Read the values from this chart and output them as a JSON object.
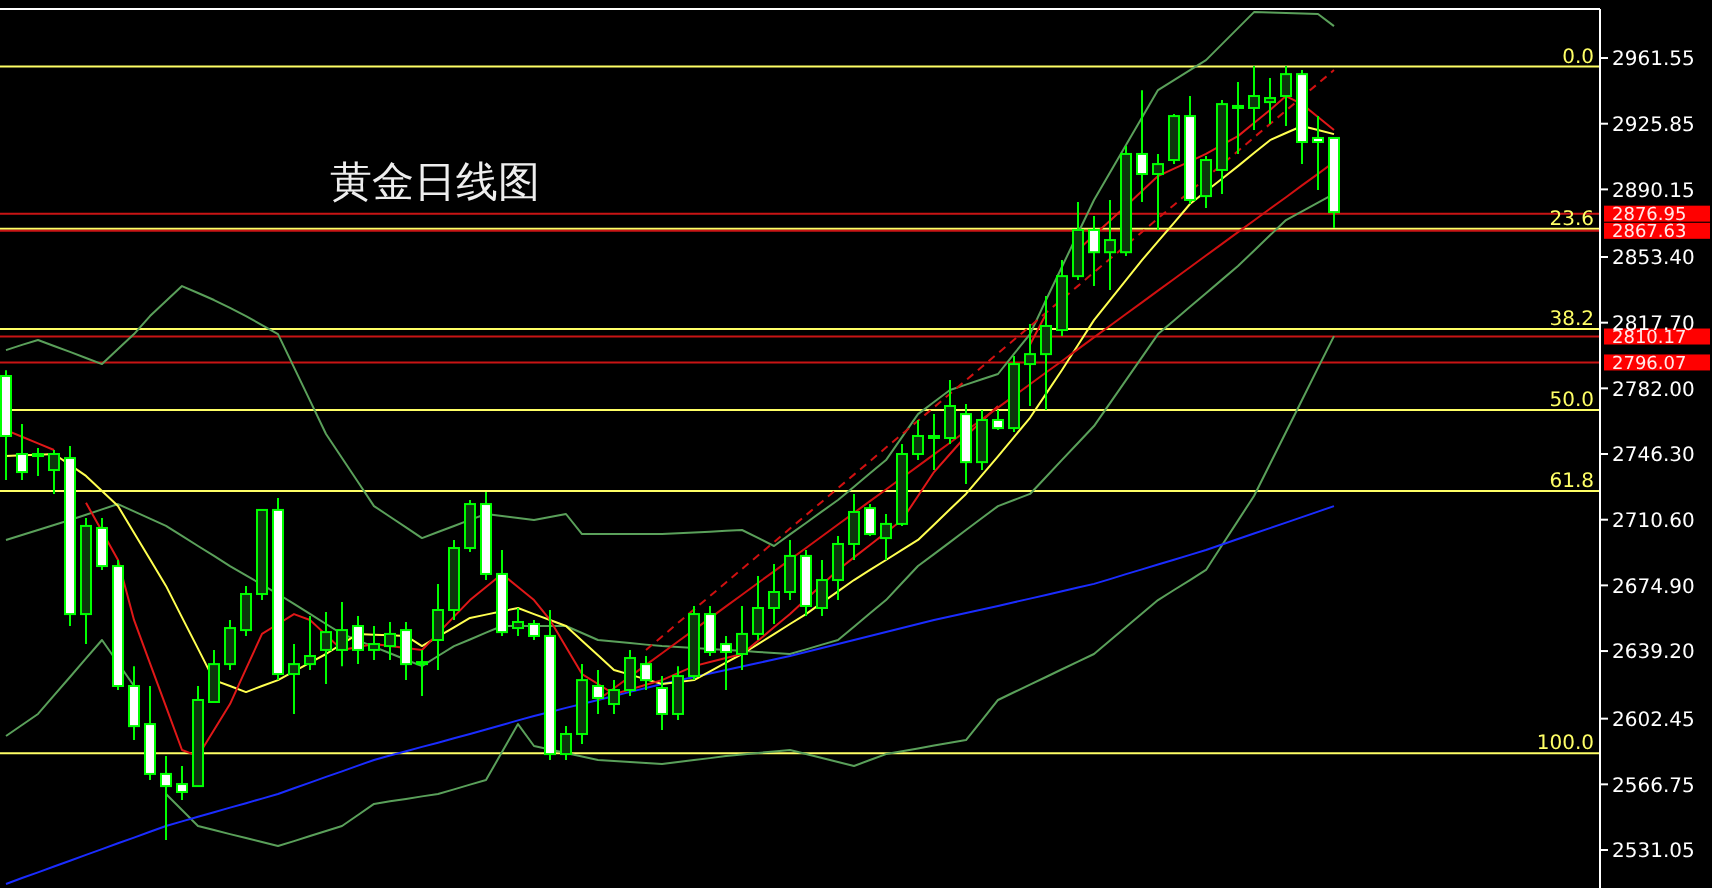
{
  "chart_data": {
    "type": "candlestick",
    "title": "黄金日线图",
    "tick_labels": "y",
    "ylim": [
      2510.4,
      2988.2
    ],
    "categories": [
      null,
      null,
      null,
      null,
      null,
      null,
      null,
      null,
      null,
      null,
      null,
      null,
      null,
      null,
      null,
      null,
      null,
      null,
      null,
      null,
      null,
      null,
      null,
      null,
      null,
      null,
      null,
      null,
      null,
      null,
      null,
      null,
      null,
      null,
      null,
      null,
      null,
      null,
      null,
      null,
      null,
      null,
      null,
      null,
      null,
      null,
      null,
      null,
      null,
      null,
      null,
      null,
      null,
      null,
      null,
      null,
      null,
      null,
      null,
      null,
      null,
      null,
      null,
      null,
      null,
      null,
      null,
      null,
      null,
      null,
      null,
      null,
      null,
      null,
      null,
      null,
      null,
      null,
      null,
      null,
      null,
      null,
      null,
      null
    ],
    "yticks": [
      {
        "value": 2961.55,
        "label": "2961.55"
      },
      {
        "value": 2925.85,
        "label": "2925.85"
      },
      {
        "value": 2890.15,
        "label": "2890.15"
      },
      {
        "value": 2853.4,
        "label": "2853.40"
      },
      {
        "value": 2817.7,
        "label": "2817.70"
      },
      {
        "value": 2782,
        "label": "2782.00"
      },
      {
        "value": 2746.3,
        "label": "2746.30"
      },
      {
        "value": 2710.6,
        "label": "2710.60"
      },
      {
        "value": 2674.9,
        "label": "2674.90"
      },
      {
        "value": 2639.2,
        "label": "2639.20"
      },
      {
        "value": 2602.45,
        "label": "2602.45"
      },
      {
        "value": 2566.75,
        "label": "2566.75"
      },
      {
        "value": 2531.05,
        "label": "2531.05"
      }
    ],
    "ref_lines": [
      {
        "axis": "y",
        "value": 2956.9,
        "color": "#ffff66"
      },
      {
        "axis": "y",
        "value": 2868.8,
        "color": "#ffff66"
      },
      {
        "axis": "y",
        "value": 2814.3,
        "color": "#ffff66"
      },
      {
        "axis": "y",
        "value": 2770.2,
        "color": "#ffff66"
      },
      {
        "axis": "y",
        "value": 2726.2,
        "color": "#ffff66"
      },
      {
        "axis": "y",
        "value": 2583.6,
        "color": "#ffff66"
      },
      {
        "axis": "y",
        "value": 2876.95,
        "label": "2876.95",
        "color": "#c81414"
      },
      {
        "axis": "y",
        "value": 2867.63,
        "label": "2867.63",
        "color": "#c81414"
      },
      {
        "axis": "y",
        "value": 2810.17,
        "label": "2810.17",
        "color": "#c81414"
      },
      {
        "axis": "y",
        "value": 2796.07,
        "label": "2796.07",
        "color": "#c81414"
      }
    ],
    "annotations": [
      {
        "text": "0.0",
        "y": 2956.9
      },
      {
        "text": "23.6",
        "y": 2868.8
      },
      {
        "text": "38.2",
        "y": 2814.3
      },
      {
        "text": "50.0",
        "y": 2770.2
      },
      {
        "text": "61.8",
        "y": 2726.2
      },
      {
        "text": "100.0",
        "y": 2583.6
      }
    ],
    "series": [
      {
        "type": "line",
        "color": "#5aa05a",
        "values": [
          2802.8,
          2805.6,
          2808.3,
          2805.0,
          2801.8,
          2798.5,
          2795.2,
          2803.4,
          2811.5,
          2821.3,
          2829.5,
          2837.6,
          2833.8,
          2830.0,
          2825.7,
          2821.3,
          2816.4,
          2811.5,
          2793.4,
          2775.3,
          2757.2,
          2744.1,
          2731.1,
          2718.0,
          2712.2,
          2706.4,
          2700.6,
          2703.9,
          2707.2,
          2710.5,
          2713.7,
          2712.6,
          2711.5,
          2710.4,
          2712.1,
          2713.7,
          2702.8,
          2702.8,
          2702.8,
          2702.8,
          2702.8,
          2702.8,
          2703.2,
          2703.7,
          2704.1,
          2704.6,
          2705.0,
          2700.7,
          2696.3,
          2702.6,
          2708.8,
          2715.1,
          2721.3,
          2728.5,
          2735.8,
          2743.0,
          2755.5,
          2768.0,
          2774.6,
          2781.1,
          2784.0,
          2786.9,
          2789.8,
          2800.7,
          2811.5,
          2830.0,
          2848.1,
          2866.3,
          2884.4,
          2899.3,
          2914.3,
          2929.2,
          2944.1,
          2949.5,
          2955.0,
          2960.4,
          2969.1,
          2977.8,
          2986.5,
          2986.3,
          2986.0,
          2985.8,
          2985.5,
          2978.9
        ]
      },
      {
        "type": "line",
        "color": "#5aa05a",
        "values": [
          2699.6,
          2702.3,
          2705.0,
          2707.7,
          2710.4,
          2713.3,
          2716.2,
          2719.1,
          2715.1,
          2711.2,
          2707.2,
          2701.8,
          2696.3,
          2690.9,
          2685.4,
          2680.3,
          2675.3,
          2670.2,
          2664.8,
          2659.4,
          2653.9,
          2648.5,
          2645.0,
          2641.5,
          2638.0,
          2634.5,
          2631.0,
          2636.5,
          2641.9,
          2645.5,
          2649.2,
          2652.8,
          2652.8,
          2652.8,
          2652.8,
          2652.8,
          2649.0,
          2645.2,
          2644.4,
          2643.6,
          2642.7,
          2641.9,
          2641.4,
          2640.9,
          2640.3,
          2639.8,
          2639.3,
          2638.7,
          2638.2,
          2637.6,
          2640.1,
          2642.7,
          2645.2,
          2652.4,
          2659.7,
          2666.9,
          2676.2,
          2685.4,
          2691.9,
          2698.4,
          2705.0,
          2711.5,
          2718.0,
          2721.3,
          2724.6,
          2733.8,
          2743.1,
          2752.3,
          2761.5,
          2774.0,
          2786.5,
          2799.0,
          2811.5,
          2818.9,
          2826.3,
          2833.7,
          2841.1,
          2848.5,
          2856.8,
          2865.2,
          2873.5,
          2878.2,
          2883.0,
          2887.7
        ]
      },
      {
        "type": "line",
        "color": "#5aa05a",
        "values": [
          2593.0,
          2599.0,
          2605.0,
          2615.1,
          2625.1,
          2635.2,
          2645.2,
          2632.7,
          2620.2,
          null,
          2561.5,
          2552.8,
          2544.1,
          2541.9,
          2539.7,
          2537.6,
          2535.4,
          2533.2,
          2535.9,
          2538.7,
          2541.4,
          2544.1,
          2550.1,
          2556.1,
          2557.5,
          2558.8,
          2560.2,
          2561.5,
          2564.0,
          2566.6,
          2569.1,
          2584.3,
          2599.5,
          2587.6,
          2585.7,
          2583.8,
          2581.9,
          2580.0,
          2579.5,
          2578.9,
          2578.4,
          2577.8,
          2578.9,
          2580.0,
          2581.0,
          2582.1,
          2582.9,
          2583.8,
          2584.6,
          2585.4,
          2583.2,
          2581.1,
          2578.9,
          2576.7,
          2580.0,
          2583.2,
          2584.7,
          2586.2,
          2587.8,
          2589.3,
          2590.8,
          2601.7,
          2612.6,
          2616.8,
          2620.9,
          2625.1,
          2629.3,
          2633.4,
          2637.6,
          2644.9,
          2652.3,
          2659.6,
          2666.9,
          2672.4,
          2677.8,
          2683.3,
          2696.7,
          2710.1,
          2723.5,
          2740.9,
          2758.3,
          2775.7,
          2793.1,
          2810.4
        ]
      },
      {
        "type": "line",
        "color": "#1a2cff",
        "values": [
          2512.6,
          2515.8,
          2518.9,
          2522.1,
          2525.2,
          2528.4,
          2531.5,
          2534.7,
          2537.8,
          2541.0,
          2544.1,
          2546.6,
          2549.1,
          2551.6,
          2554.1,
          2556.5,
          2559.0,
          2561.5,
          2564.6,
          2567.7,
          2570.8,
          2573.8,
          2576.9,
          2580.0,
          2582.4,
          2584.7,
          2587.1,
          2589.4,
          2591.8,
          2594.1,
          2596.6,
          2599.0,
          2601.5,
          2603.9,
          2606.1,
          2608.3,
          2610.4,
          2612.6,
          2614.8,
          2617.0,
          2619.1,
          2621.3,
          2623.2,
          2625.1,
          2627.0,
          2628.9,
          2630.8,
          2632.7,
          2634.6,
          2636.5,
          2638.7,
          2640.9,
          2643.0,
          2645.2,
          2647.4,
          2649.6,
          2651.7,
          2653.9,
          2656.1,
          2658.0,
          2659.9,
          2661.8,
          2663.7,
          2665.7,
          2667.7,
          2669.7,
          2671.7,
          2673.7,
          2675.7,
          2678.3,
          2681.0,
          2683.6,
          2686.2,
          2688.8,
          2691.5,
          2694.1,
          2697.1,
          2700.1,
          2703.1,
          2706.0,
          2709.0,
          2712.0,
          2715.0,
          2718.0
        ]
      },
      {
        "type": "line",
        "color": "#ffff50",
        "values": [
          2745.2,
          2745.6,
          2745.9,
          2746.3,
          2740.4,
          2734.4,
          2726.2,
          2718.0,
          2703.5,
          2689.1,
          2674.6,
          2657.5,
          2640.5,
          2623.4,
          2620.2,
          2616.9,
          2620.2,
          2623.4,
          2628.1,
          2632.9,
          2637.6,
          2643.1,
          2648.5,
          2648.1,
          2647.8,
          2647.4,
          2641.9,
          2647.0,
          2652.1,
          2657.2,
          2659.0,
          2660.8,
          2662.6,
          2659.3,
          2656.1,
          2652.8,
          2644.8,
          2636.9,
          2628.9,
          2626.4,
          2623.8,
          2621.3,
          2622.4,
          2623.4,
          2628.1,
          2632.9,
          2637.6,
          2643.0,
          2648.4,
          2653.9,
          2659.3,
          2665.5,
          2671.6,
          2677.8,
          2683.3,
          2688.7,
          2694.2,
          2699.6,
          2707.9,
          2716.3,
          2724.6,
          2734.8,
          2745.0,
          2755.5,
          2766.0,
          2779.0,
          2792.0,
          2805.6,
          2819.1,
          2830.0,
          2840.8,
          2851.7,
          2861.9,
          2872.0,
          2882.2,
          2889.1,
          2895.9,
          2902.8,
          2909.9,
          2916.9,
          2920.8,
          2924.6,
          2922.4,
          2920.2
        ]
      },
      {
        "type": "line",
        "color": "#e01818",
        "values": [
          2759.3,
          2755.7,
          2752.1,
          2748.5,
          null,
          2719.8,
          2704.3,
          2688.7,
          2656.1,
          2632.5,
          2609.0,
          2585.4,
          2582.1,
          2596.3,
          2610.4,
          2629.5,
          2648.5,
          2653.9,
          2659.3,
          2656.1,
          2648.0,
          2639.8,
          2641.4,
          2643.0,
          2641.9,
          2640.9,
          2639.8,
          2648.8,
          2657.9,
          2666.9,
          2674.0,
          2681.1,
          2674.0,
          2666.9,
          2656.1,
          2641.4,
          2626.7,
          2621.3,
          2615.8,
          2618.3,
          2620.9,
          2623.4,
          2627.2,
          2631.0,
          2633.2,
          2635.4,
          2637.6,
          2644.8,
          2652.1,
          2659.3,
          2667.3,
          2675.3,
          2683.3,
          2690.1,
          2696.8,
          2703.6,
          2710.4,
          2723.5,
          2736.5,
          2746.3,
          2756.1,
          2764.3,
          2772.4,
          null,
          2805.7,
          2822.4,
          null,
          2857.2,
          2865.2,
          2873.1,
          2881.1,
          2889.3,
          2897.4,
          2901.4,
          2905.4,
          2909.4,
          2914.3,
          2919.1,
          2926.2,
          2933.3,
          2940.9,
          2936.5,
          2929.5,
          2922.4
        ]
      },
      {
        "type": "line",
        "color": "#d01010",
        "values": [
          null,
          null,
          null,
          null,
          null,
          null,
          null,
          null,
          null,
          null,
          null,
          null,
          null,
          null,
          null,
          null,
          null,
          null,
          null,
          null,
          null,
          null,
          null,
          null,
          null,
          null,
          null,
          null,
          null,
          null,
          null,
          null,
          null,
          null,
          null,
          null,
          null,
          2612.6,
          2619.0,
          2625.3,
          2631.7,
          2638.0,
          2644.4,
          2650.7,
          2657.1,
          2663.5,
          2669.8,
          2676.2,
          2682.5,
          2688.9,
          2695.2,
          2701.6,
          2708.0,
          2714.3,
          2720.7,
          2727.0,
          2733.4,
          2739.7,
          2746.1,
          2752.4,
          2758.8,
          2765.2,
          2771.5,
          2777.9,
          2784.2,
          2790.6,
          2796.9,
          2803.3,
          2809.7,
          2816.0,
          2822.4,
          2828.7,
          2835.1,
          2841.4,
          2847.8,
          2854.2,
          2860.5,
          2866.9,
          2873.2,
          2879.6,
          2885.9,
          2892.3,
          2898.6,
          2905.0
        ]
      },
      {
        "type": "line",
        "color": "#d01010",
        "line_style": "dashed",
        "values": [
          null,
          null,
          null,
          null,
          null,
          null,
          null,
          null,
          null,
          null,
          null,
          null,
          null,
          null,
          null,
          null,
          null,
          null,
          null,
          null,
          null,
          null,
          null,
          null,
          null,
          null,
          null,
          null,
          null,
          null,
          null,
          null,
          null,
          null,
          null,
          null,
          null,
          null,
          null,
          null,
          2639.8,
          2647.1,
          2654.5,
          2661.8,
          2669.1,
          2676.5,
          2683.8,
          2691.1,
          2698.4,
          2705.8,
          2713.1,
          2720.4,
          2727.8,
          2735.1,
          2742.4,
          2749.8,
          2757.1,
          2764.4,
          2771.7,
          2779.1,
          2786.4,
          2793.7,
          2801.1,
          2808.4,
          2815.7,
          2823.1,
          2830.4,
          2837.7,
          2845.1,
          2852.4,
          2859.7,
          2867.0,
          2874.4,
          2881.7,
          2889.0,
          2896.4,
          2903.7,
          2911.0,
          2918.4,
          2925.7,
          2933.0,
          2940.3,
          2947.7,
          2955.0
        ]
      },
      {
        "type": "candlestick",
        "color": "#00ff00",
        "ohlc": [
          [
            2788.7,
            2791.9,
            2732.2,
            2756.1
          ],
          [
            2746.3,
            2762.6,
            2732.2,
            2736.5
          ],
          [
            2745.2,
            2749.6,
            2734.4,
            2746.3
          ],
          [
            2737.6,
            2748.5,
            2724.6,
            2746.3
          ],
          [
            2744.1,
            2750.6,
            2652.8,
            2659.3
          ],
          [
            2659.3,
            2711.5,
            2643.0,
            2707.2
          ],
          [
            2706.1,
            2711.5,
            2683.3,
            2685.4
          ],
          [
            2685.4,
            2688.7,
            2618.0,
            2620.2
          ],
          [
            2620.2,
            2631.0,
            2590.8,
            2598.4
          ],
          [
            2599.5,
            2620.2,
            2569.1,
            2572.4
          ],
          [
            2572.4,
            2582.1,
            2536.5,
            2565.8
          ],
          [
            2566.9,
            2576.7,
            2558.2,
            2562.6
          ],
          [
            2565.8,
            2620.2,
            2565.8,
            2612.6
          ],
          [
            2611.5,
            2639.8,
            2611.5,
            2632.1
          ],
          [
            2632.1,
            2656.1,
            2628.9,
            2651.7
          ],
          [
            2650.6,
            2674.6,
            2647.4,
            2670.2
          ],
          [
            2670.2,
            2715.9,
            2666.9,
            2715.9
          ],
          [
            2715.9,
            2722.4,
            2623.4,
            2626.7
          ],
          [
            2626.7,
            2643.0,
            2605.0,
            2632.1
          ],
          [
            2632.1,
            2658.3,
            2628.9,
            2636.5
          ],
          [
            2639.8,
            2660.4,
            2621.3,
            2649.5
          ],
          [
            2639.8,
            2665.9,
            2631.0,
            2650.6
          ],
          [
            2652.8,
            2658.3,
            2632.1,
            2639.8
          ],
          [
            2639.8,
            2652.8,
            2634.3,
            2643.0
          ],
          [
            2641.9,
            2655.0,
            2634.3,
            2648.5
          ],
          [
            2650.6,
            2655.0,
            2623.4,
            2632.1
          ],
          [
            2632.1,
            2639.8,
            2614.8,
            2633.2
          ],
          [
            2645.2,
            2675.7,
            2628.9,
            2661.5
          ],
          [
            2661.5,
            2699.6,
            2656.1,
            2695.2
          ],
          [
            2695.2,
            2721.3,
            2693.0,
            2719.1
          ],
          [
            2719.1,
            2725.6,
            2677.8,
            2681.1
          ],
          [
            2681.1,
            2694.1,
            2647.4,
            2649.5
          ],
          [
            2651.7,
            2662.6,
            2647.4,
            2655.0
          ],
          [
            2653.9,
            2656.1,
            2645.2,
            2647.4
          ],
          [
            2647.4,
            2661.5,
            2580.0,
            2583.2
          ],
          [
            2583.2,
            2598.4,
            2580.0,
            2594.1
          ],
          [
            2594.1,
            2632.1,
            2588.7,
            2623.4
          ],
          [
            2620.2,
            2628.9,
            2605.0,
            2613.7
          ],
          [
            2610.4,
            2623.4,
            2605.0,
            2618.0
          ],
          [
            2618.0,
            2639.8,
            2614.8,
            2635.4
          ],
          [
            2632.1,
            2636.5,
            2618.0,
            2623.4
          ],
          [
            2619.1,
            2625.6,
            2596.3,
            2605.0
          ],
          [
            2605.0,
            2631.0,
            2601.7,
            2625.6
          ],
          [
            2625.6,
            2663.7,
            2623.4,
            2659.3
          ],
          [
            2659.3,
            2663.7,
            2636.5,
            2638.7
          ],
          [
            2643.0,
            2647.4,
            2618.0,
            2638.7
          ],
          [
            2637.6,
            2663.7,
            2628.9,
            2648.5
          ],
          [
            2648.5,
            2680.0,
            2645.2,
            2662.6
          ],
          [
            2662.6,
            2686.5,
            2653.9,
            2671.3
          ],
          [
            2671.3,
            2699.6,
            2666.9,
            2690.9
          ],
          [
            2690.9,
            2694.1,
            2658.3,
            2663.7
          ],
          [
            2662.6,
            2688.7,
            2658.3,
            2677.8
          ],
          [
            2677.8,
            2701.7,
            2666.9,
            2697.4
          ],
          [
            2697.4,
            2724.6,
            2688.7,
            2714.8
          ],
          [
            2716.9,
            2719.1,
            2701.7,
            2702.8
          ],
          [
            2700.6,
            2713.7,
            2688.7,
            2708.3
          ],
          [
            2708.3,
            2751.7,
            2707.2,
            2746.3
          ],
          [
            2746.3,
            2764.8,
            2743.0,
            2756.1
          ],
          [
            2755.0,
            2768.0,
            2737.6,
            2756.1
          ],
          [
            2755.0,
            2786.5,
            2751.7,
            2772.4
          ],
          [
            2768.0,
            2773.5,
            2730.0,
            2741.9
          ],
          [
            2741.9,
            2770.2,
            2737.6,
            2764.8
          ],
          [
            2764.8,
            2770.2,
            2759.3,
            2760.4
          ],
          [
            2760.4,
            2799.6,
            2758.3,
            2795.2
          ],
          [
            2795.2,
            2817.0,
            2772.4,
            2800.6
          ],
          [
            2800.6,
            2832.2,
            2770.2,
            2815.9
          ],
          [
            2813.7,
            2851.7,
            2810.4,
            2843.0
          ],
          [
            2843.0,
            2883.3,
            2840.9,
            2868.1
          ],
          [
            2868.1,
            2875.7,
            2837.6,
            2856.0
          ],
          [
            2856.0,
            2884.4,
            2835.4,
            2862.6
          ],
          [
            2856.0,
            2913.7,
            2853.9,
            2909.4
          ],
          [
            2909.4,
            2944.1,
            2883.3,
            2898.5
          ],
          [
            2898.5,
            2909.4,
            2868.1,
            2903.9
          ],
          [
            2906.1,
            2931.1,
            2903.9,
            2930.0
          ],
          [
            2930.0,
            2940.9,
            2882.2,
            2884.4
          ],
          [
            2886.5,
            2908.3,
            2880.0,
            2906.1
          ],
          [
            2900.7,
            2938.7,
            2887.7,
            2936.5
          ],
          [
            2934.4,
            2948.5,
            2909.4,
            2935.5
          ],
          [
            2934.4,
            2957.2,
            2922.4,
            2940.9
          ],
          [
            2937.6,
            2950.7,
            2925.7,
            2939.8
          ],
          [
            2940.9,
            2957.2,
            2924.6,
            2952.8
          ],
          [
            2952.8,
            2955.0,
            2903.9,
            2915.9
          ],
          [
            2918.1,
            2930.0,
            2889.8,
            2915.9
          ],
          [
            2918.1,
            2918.1,
            2869.1,
            2877.8
          ]
        ]
      }
    ]
  }
}
